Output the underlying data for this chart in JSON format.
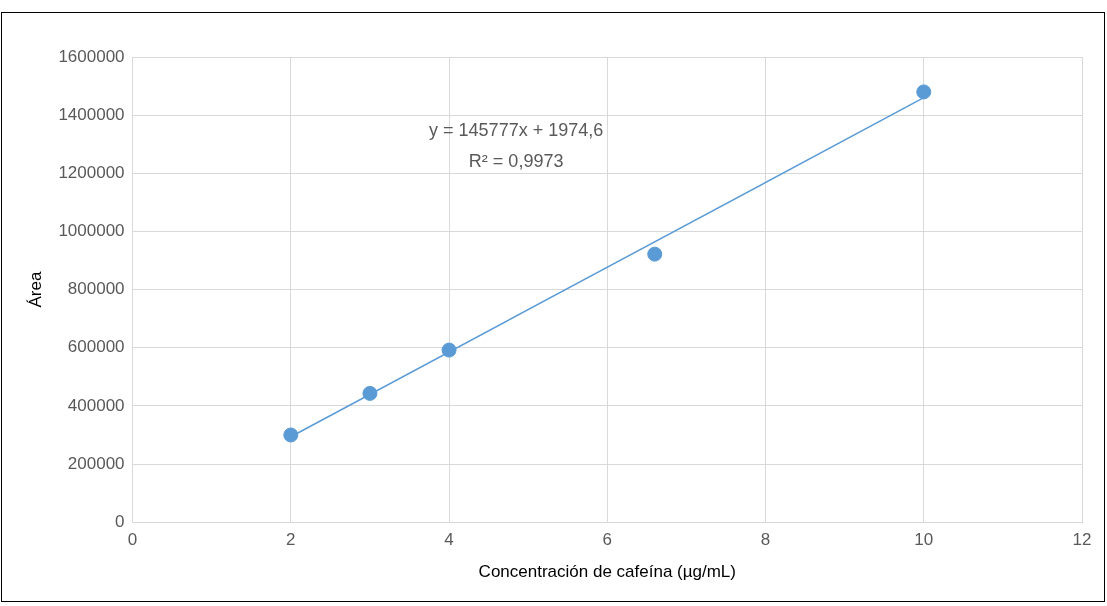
{
  "chart_data": {
    "type": "scatter",
    "xlabel": "Concentración de cafeína (µg/mL)",
    "ylabel": "Área",
    "xlim": [
      0,
      12
    ],
    "xticks": [
      0,
      2,
      4,
      6,
      8,
      10,
      12
    ],
    "ylim": [
      0,
      1600000
    ],
    "yticks": [
      0,
      200000,
      400000,
      600000,
      800000,
      1000000,
      1200000,
      1400000,
      1600000
    ],
    "grid": true,
    "legend": false,
    "marker": "circle",
    "series": [
      {
        "type": "scatter",
        "color": "#5b9bd5",
        "x": [
          2,
          3,
          4,
          6.6,
          10
        ],
        "values": [
          300000,
          443000,
          592000,
          922000,
          1480000
        ]
      },
      {
        "type": "line",
        "color": "#5b9bd5",
        "x": [
          2,
          10
        ],
        "values": [
          294000,
          1460000
        ],
        "marker": "none"
      }
    ],
    "annotations": [
      "y = 145777x + 1974,6",
      "R² = 0,9973"
    ]
  }
}
